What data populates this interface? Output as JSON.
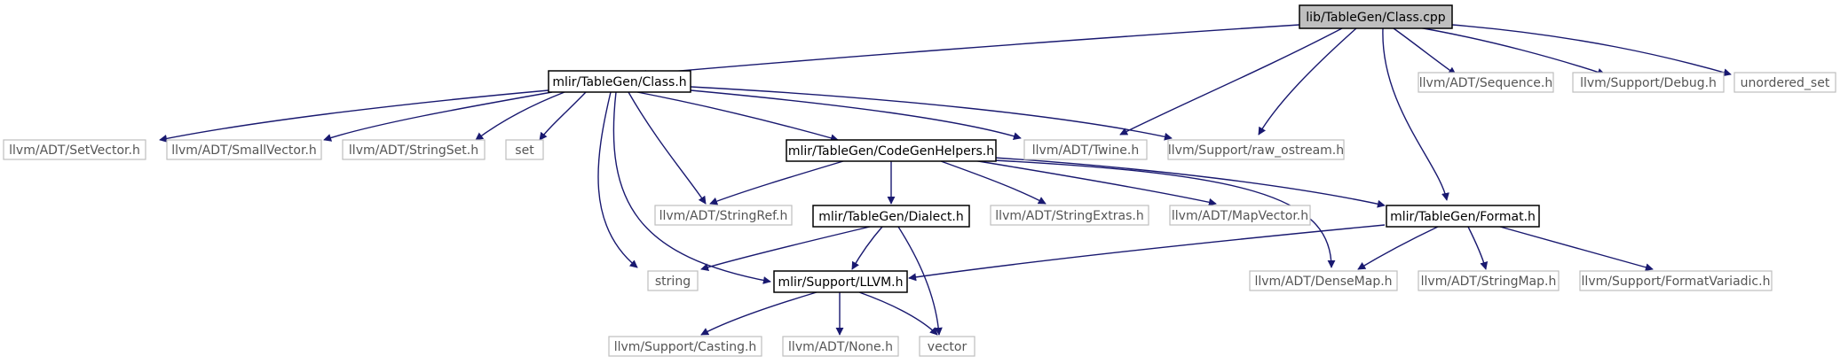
{
  "graph": {
    "colors": {
      "edge": "#191970",
      "root_fill": "#bfbfbf",
      "local_border": "#000000",
      "external_border": "#bfbfbf",
      "external_text": "#555555"
    },
    "nodes": [
      {
        "id": "n0",
        "label": "lib/TableGen/Class.cpp",
        "kind": "root"
      },
      {
        "id": "n1",
        "label": "mlir/TableGen/Class.h",
        "kind": "local"
      },
      {
        "id": "n2",
        "label": "llvm/ADT/SetVector.h",
        "kind": "external"
      },
      {
        "id": "n3",
        "label": "llvm/ADT/SmallVector.h",
        "kind": "external"
      },
      {
        "id": "n4",
        "label": "llvm/ADT/StringSet.h",
        "kind": "external"
      },
      {
        "id": "n5",
        "label": "set",
        "kind": "external"
      },
      {
        "id": "n6",
        "label": "mlir/TableGen/CodeGenHelpers.h",
        "kind": "local"
      },
      {
        "id": "n7",
        "label": "llvm/ADT/Twine.h",
        "kind": "external"
      },
      {
        "id": "n8",
        "label": "llvm/Support/raw_ostream.h",
        "kind": "external"
      },
      {
        "id": "n9",
        "label": "llvm/ADT/Sequence.h",
        "kind": "external"
      },
      {
        "id": "n10",
        "label": "llvm/Support/Debug.h",
        "kind": "external"
      },
      {
        "id": "n11",
        "label": "unordered_set",
        "kind": "external"
      },
      {
        "id": "n12",
        "label": "llvm/ADT/StringRef.h",
        "kind": "external"
      },
      {
        "id": "n13",
        "label": "mlir/TableGen/Dialect.h",
        "kind": "local"
      },
      {
        "id": "n14",
        "label": "llvm/ADT/StringExtras.h",
        "kind": "external"
      },
      {
        "id": "n15",
        "label": "llvm/ADT/MapVector.h",
        "kind": "external"
      },
      {
        "id": "n16",
        "label": "mlir/TableGen/Format.h",
        "kind": "local"
      },
      {
        "id": "n17",
        "label": "string",
        "kind": "external"
      },
      {
        "id": "n18",
        "label": "mlir/Support/LLVM.h",
        "kind": "local"
      },
      {
        "id": "n19",
        "label": "llvm/ADT/DenseMap.h",
        "kind": "external"
      },
      {
        "id": "n20",
        "label": "llvm/ADT/StringMap.h",
        "kind": "external"
      },
      {
        "id": "n21",
        "label": "llvm/Support/FormatVariadic.h",
        "kind": "external"
      },
      {
        "id": "n22",
        "label": "llvm/Support/Casting.h",
        "kind": "external"
      },
      {
        "id": "n23",
        "label": "llvm/ADT/None.h",
        "kind": "external"
      },
      {
        "id": "n24",
        "label": "vector",
        "kind": "external"
      }
    ]
  }
}
